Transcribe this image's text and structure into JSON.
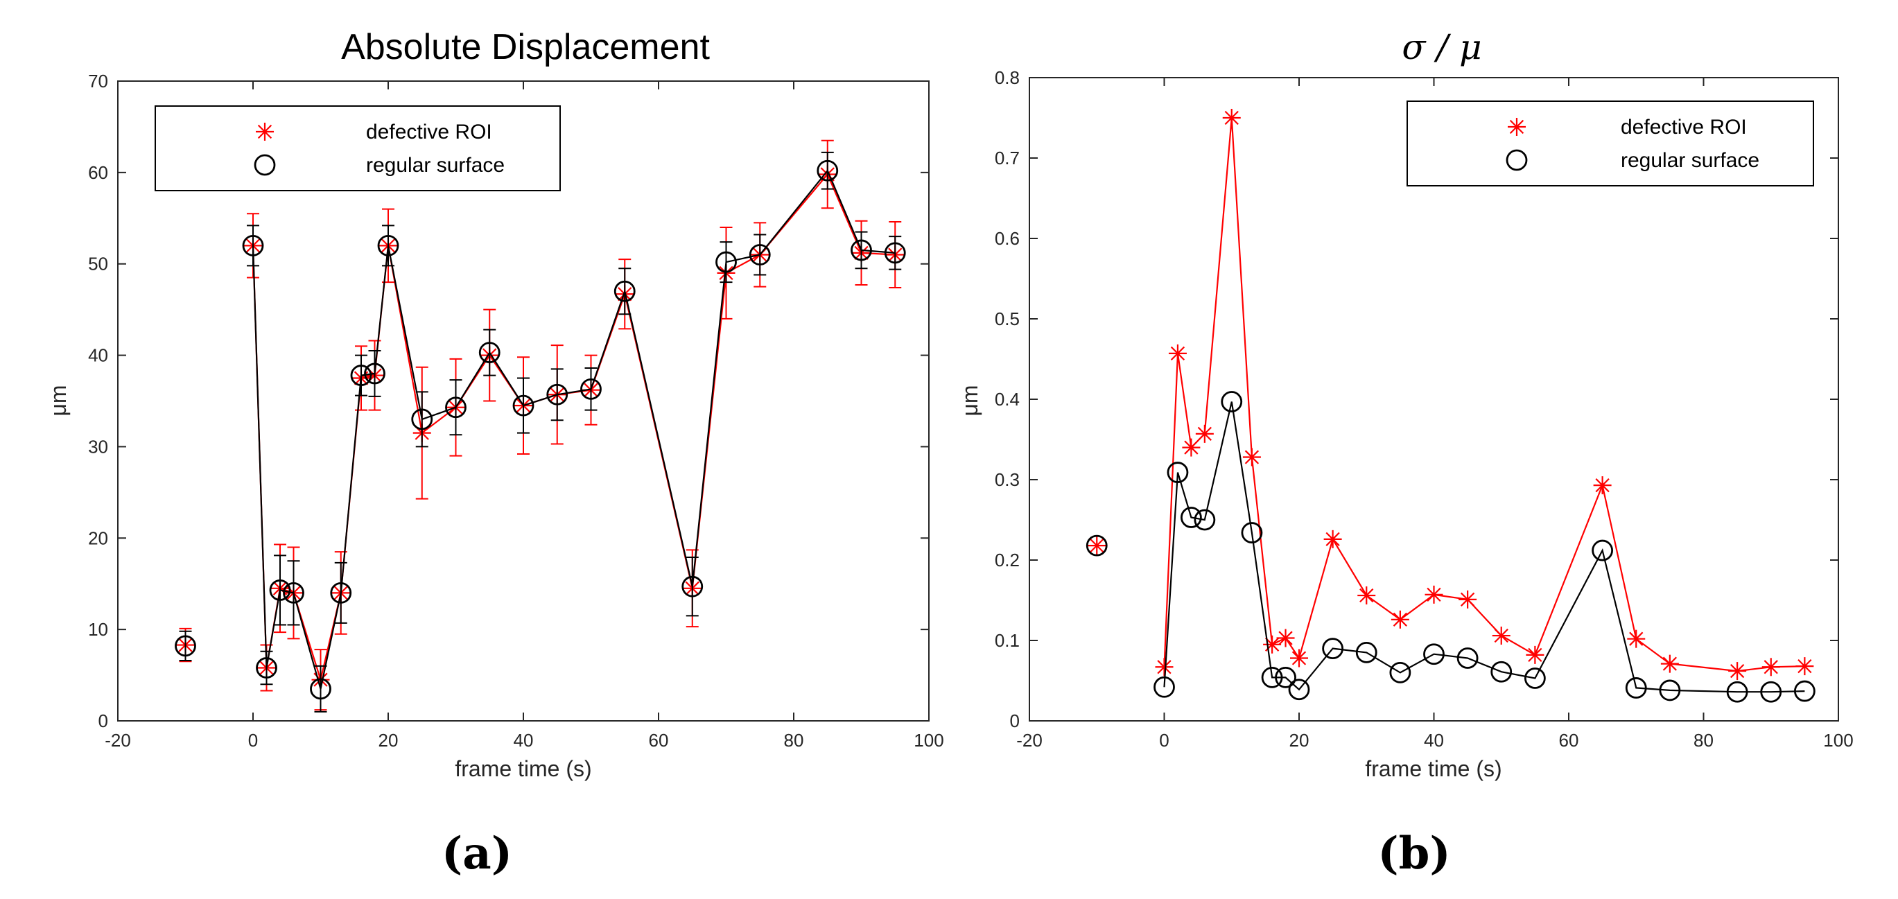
{
  "chart_data": [
    {
      "id": "a",
      "type": "line",
      "title": "Absolute Displacement",
      "title_style": "text",
      "caption": "(a)",
      "xlabel": "frame time (s)",
      "ylabel": "μm",
      "xlim": [
        -20,
        100
      ],
      "ylim": [
        0,
        70
      ],
      "xticks": [
        -20,
        0,
        20,
        40,
        60,
        80,
        100
      ],
      "yticks": [
        0,
        10,
        20,
        30,
        40,
        50,
        60,
        70
      ],
      "legend": {
        "position": "top-left"
      },
      "series": [
        {
          "name": "defective ROI",
          "color": "#ff0000",
          "marker": "asterisk",
          "points": [
            {
              "x": -10,
              "y": 8.3,
              "err": 1.8,
              "connected": false
            },
            {
              "x": 0,
              "y": 52,
              "err": 3.5
            },
            {
              "x": 2,
              "y": 5.8,
              "err": 2.5
            },
            {
              "x": 4,
              "y": 14.5,
              "err": 4.8
            },
            {
              "x": 6,
              "y": 14.0,
              "err": 5.0
            },
            {
              "x": 10,
              "y": 4.5,
              "err": 3.3
            },
            {
              "x": 13,
              "y": 14.0,
              "err": 4.5
            },
            {
              "x": 16,
              "y": 37.5,
              "err": 3.5
            },
            {
              "x": 18,
              "y": 37.8,
              "err": 3.8
            },
            {
              "x": 20,
              "y": 52,
              "err": 4.0
            },
            {
              "x": 25,
              "y": 31.5,
              "err": 7.2
            },
            {
              "x": 30,
              "y": 34.3,
              "err": 5.3
            },
            {
              "x": 35,
              "y": 40.0,
              "err": 5.0
            },
            {
              "x": 40,
              "y": 34.5,
              "err": 5.3
            },
            {
              "x": 45,
              "y": 35.7,
              "err": 5.4
            },
            {
              "x": 50,
              "y": 36.2,
              "err": 3.8
            },
            {
              "x": 55,
              "y": 46.7,
              "err": 3.8
            },
            {
              "x": 65,
              "y": 14.5,
              "err": 4.2
            },
            {
              "x": 70,
              "y": 49.0,
              "err": 5.0
            },
            {
              "x": 75,
              "y": 51.0,
              "err": 3.5
            },
            {
              "x": 85,
              "y": 59.8,
              "err": 3.7
            },
            {
              "x": 90,
              "y": 51.2,
              "err": 3.5
            },
            {
              "x": 95,
              "y": 51.0,
              "err": 3.6
            }
          ]
        },
        {
          "name": "regular surface",
          "color": "#000000",
          "marker": "circle",
          "points": [
            {
              "x": -10,
              "y": 8.2,
              "err": 1.6,
              "connected": false
            },
            {
              "x": 0,
              "y": 52,
              "err": 2.2
            },
            {
              "x": 2,
              "y": 5.8,
              "err": 1.8
            },
            {
              "x": 4,
              "y": 14.3,
              "err": 3.8
            },
            {
              "x": 6,
              "y": 14.0,
              "err": 3.5
            },
            {
              "x": 10,
              "y": 3.5,
              "err": 2.5
            },
            {
              "x": 13,
              "y": 14.0,
              "err": 3.3
            },
            {
              "x": 16,
              "y": 37.8,
              "err": 2.2
            },
            {
              "x": 18,
              "y": 38.0,
              "err": 2.5
            },
            {
              "x": 20,
              "y": 52,
              "err": 2.2
            },
            {
              "x": 25,
              "y": 33.0,
              "err": 3.0
            },
            {
              "x": 30,
              "y": 34.3,
              "err": 3.0
            },
            {
              "x": 35,
              "y": 40.3,
              "err": 2.5
            },
            {
              "x": 40,
              "y": 34.5,
              "err": 3.0
            },
            {
              "x": 45,
              "y": 35.7,
              "err": 2.8
            },
            {
              "x": 50,
              "y": 36.3,
              "err": 2.3
            },
            {
              "x": 55,
              "y": 47.0,
              "err": 2.5
            },
            {
              "x": 65,
              "y": 14.7,
              "err": 3.2
            },
            {
              "x": 70,
              "y": 50.2,
              "err": 2.2
            },
            {
              "x": 75,
              "y": 51.0,
              "err": 2.2
            },
            {
              "x": 85,
              "y": 60.2,
              "err": 2.0
            },
            {
              "x": 90,
              "y": 51.5,
              "err": 2.0
            },
            {
              "x": 95,
              "y": 51.2,
              "err": 1.8
            }
          ]
        }
      ]
    },
    {
      "id": "b",
      "type": "line",
      "title": "σ / μ",
      "title_style": "math",
      "caption": "(b)",
      "xlabel": "frame time (s)",
      "ylabel": "μm",
      "xlim": [
        -20,
        100
      ],
      "ylim": [
        0,
        0.8
      ],
      "xticks": [
        -20,
        0,
        20,
        40,
        60,
        80,
        100
      ],
      "yticks": [
        0,
        0.1,
        0.2,
        0.3,
        0.4,
        0.5,
        0.6,
        0.7,
        0.8
      ],
      "legend": {
        "position": "top-right"
      },
      "series": [
        {
          "name": "defective ROI",
          "color": "#ff0000",
          "marker": "asterisk",
          "points": [
            {
              "x": -10,
              "y": 0.218,
              "connected": false
            },
            {
              "x": 0,
              "y": 0.067
            },
            {
              "x": 2,
              "y": 0.457
            },
            {
              "x": 4,
              "y": 0.34
            },
            {
              "x": 6,
              "y": 0.357
            },
            {
              "x": 10,
              "y": 0.75
            },
            {
              "x": 13,
              "y": 0.328
            },
            {
              "x": 16,
              "y": 0.095
            },
            {
              "x": 18,
              "y": 0.103
            },
            {
              "x": 20,
              "y": 0.078
            },
            {
              "x": 25,
              "y": 0.226
            },
            {
              "x": 30,
              "y": 0.156
            },
            {
              "x": 35,
              "y": 0.126
            },
            {
              "x": 40,
              "y": 0.157
            },
            {
              "x": 45,
              "y": 0.151
            },
            {
              "x": 50,
              "y": 0.106
            },
            {
              "x": 55,
              "y": 0.082
            },
            {
              "x": 65,
              "y": 0.293
            },
            {
              "x": 70,
              "y": 0.102
            },
            {
              "x": 75,
              "y": 0.071
            },
            {
              "x": 85,
              "y": 0.062
            },
            {
              "x": 90,
              "y": 0.067
            },
            {
              "x": 95,
              "y": 0.068
            }
          ]
        },
        {
          "name": "regular surface",
          "color": "#000000",
          "marker": "circle",
          "points": [
            {
              "x": -10,
              "y": 0.218,
              "connected": false
            },
            {
              "x": 0,
              "y": 0.042
            },
            {
              "x": 2,
              "y": 0.309
            },
            {
              "x": 4,
              "y": 0.253
            },
            {
              "x": 6,
              "y": 0.25
            },
            {
              "x": 10,
              "y": 0.397
            },
            {
              "x": 13,
              "y": 0.234
            },
            {
              "x": 16,
              "y": 0.054
            },
            {
              "x": 18,
              "y": 0.054
            },
            {
              "x": 20,
              "y": 0.039
            },
            {
              "x": 25,
              "y": 0.09
            },
            {
              "x": 30,
              "y": 0.085
            },
            {
              "x": 35,
              "y": 0.06
            },
            {
              "x": 40,
              "y": 0.083
            },
            {
              "x": 45,
              "y": 0.078
            },
            {
              "x": 50,
              "y": 0.061
            },
            {
              "x": 55,
              "y": 0.053
            },
            {
              "x": 65,
              "y": 0.212
            },
            {
              "x": 70,
              "y": 0.041
            },
            {
              "x": 75,
              "y": 0.038
            },
            {
              "x": 85,
              "y": 0.036
            },
            {
              "x": 90,
              "y": 0.036
            },
            {
              "x": 95,
              "y": 0.037
            }
          ]
        }
      ]
    }
  ]
}
